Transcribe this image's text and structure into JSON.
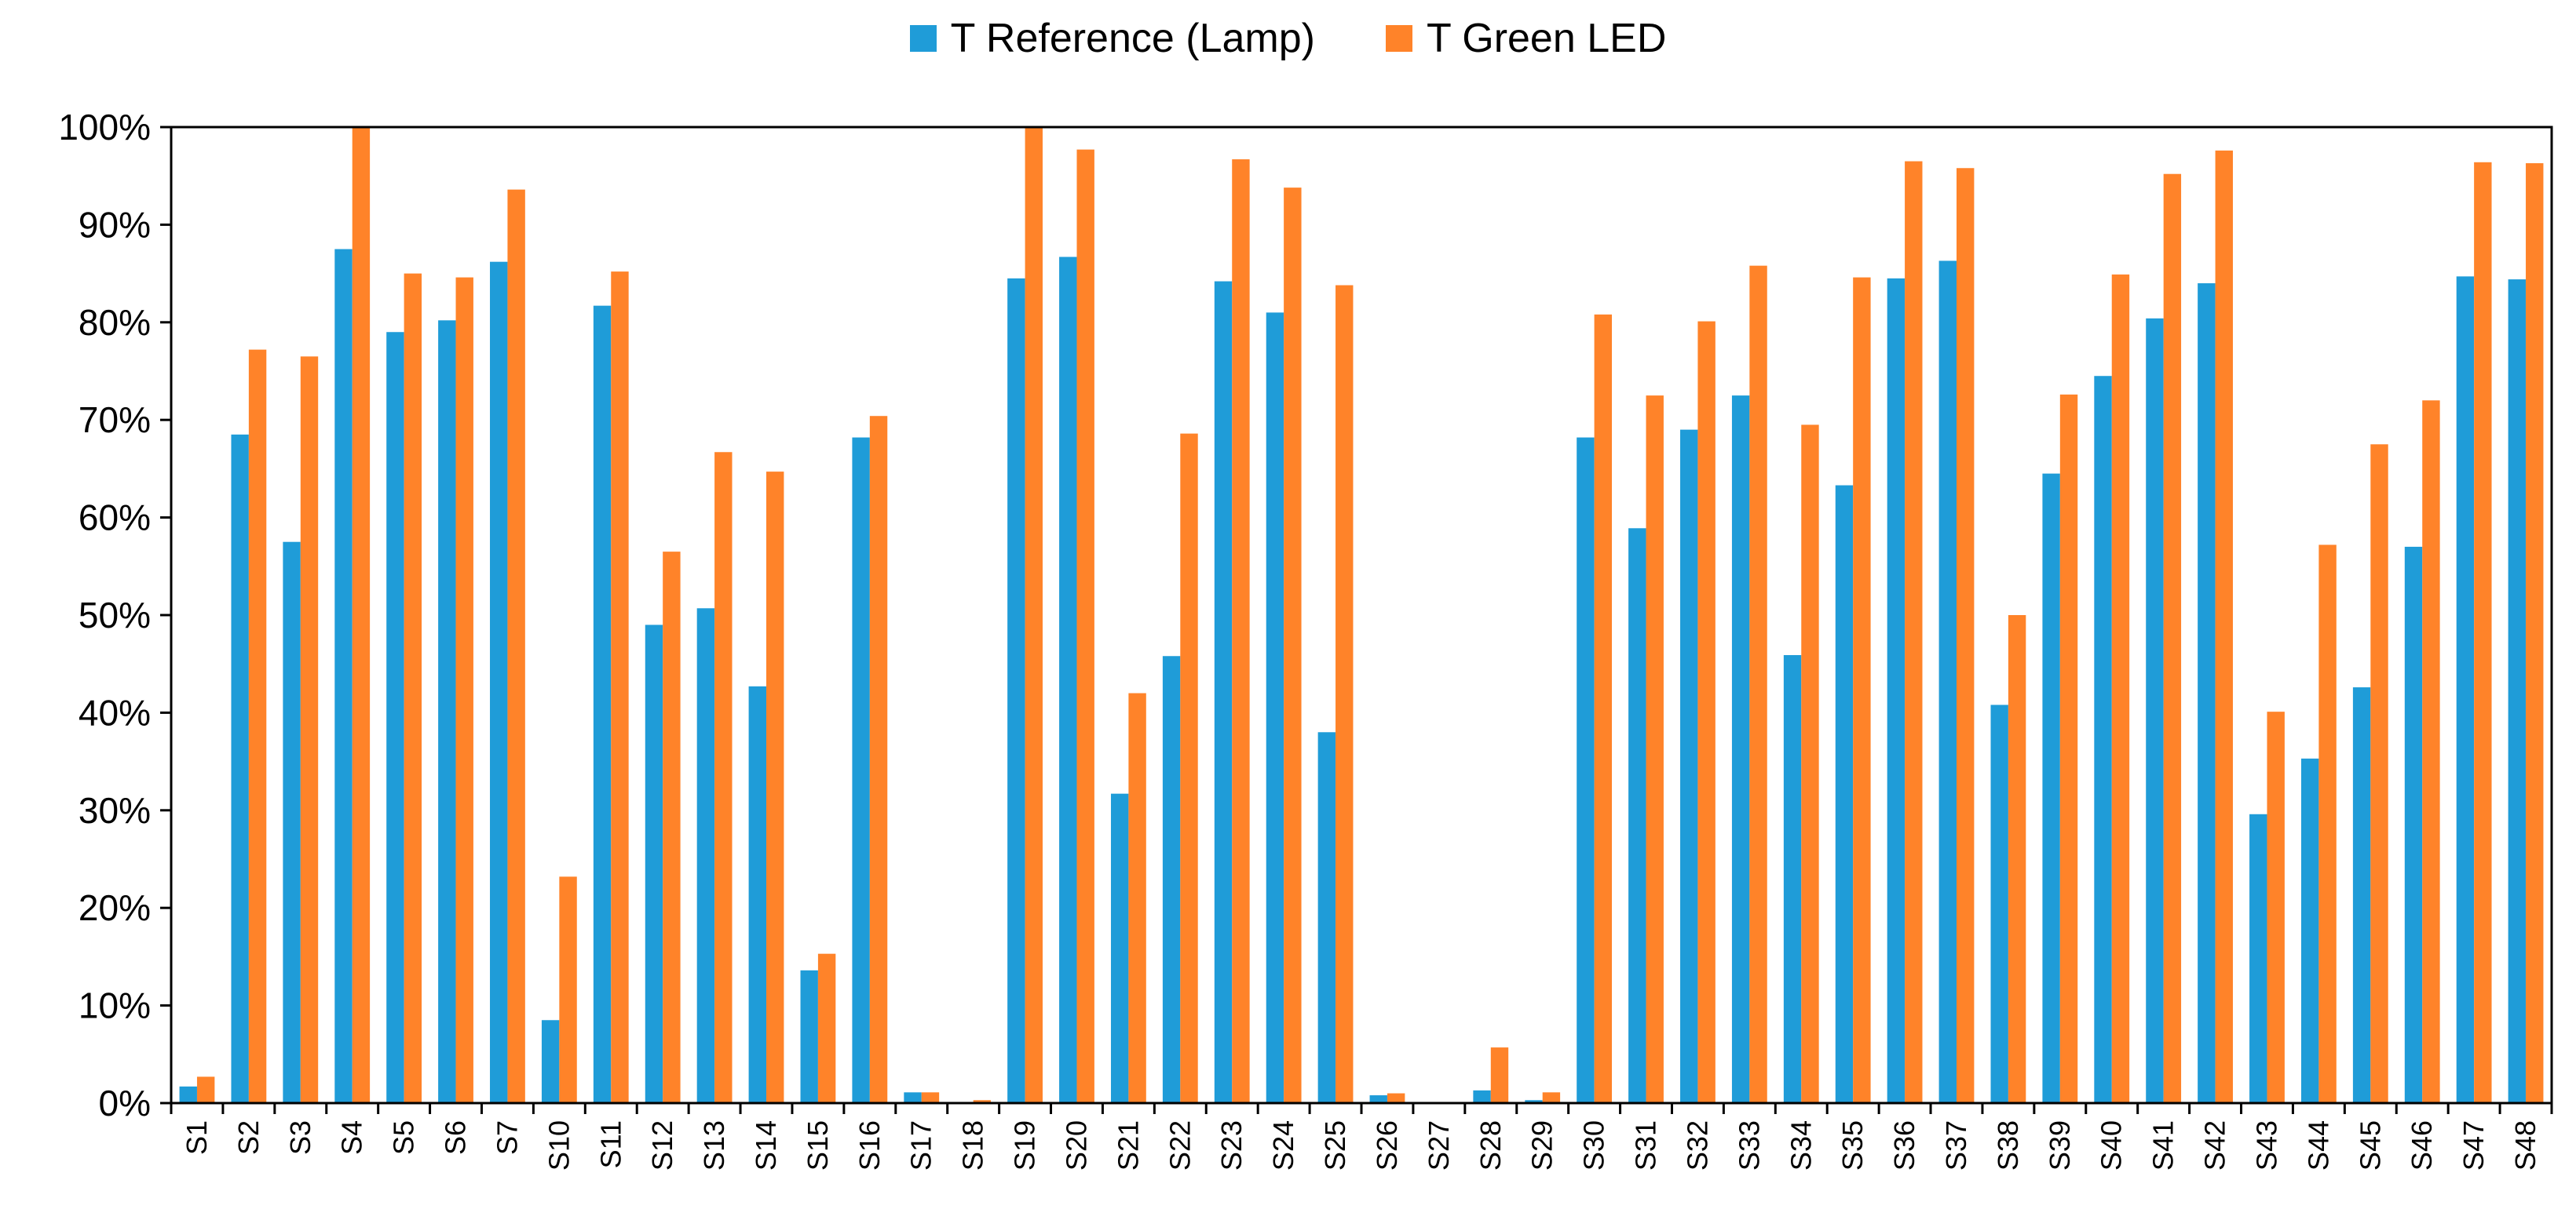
{
  "chart_data": {
    "type": "bar",
    "categories": [
      "S1",
      "S2",
      "S3",
      "S4",
      "S5",
      "S6",
      "S7",
      "S10",
      "S11",
      "S12",
      "S13",
      "S14",
      "S15",
      "S16",
      "S17",
      "S18",
      "S19",
      "S20",
      "S21",
      "S22",
      "S23",
      "S24",
      "S25",
      "S26",
      "S27",
      "S28",
      "S29",
      "S30",
      "S31",
      "S32",
      "S33",
      "S34",
      "S35",
      "S36",
      "S37",
      "S38",
      "S39",
      "S40",
      "S41",
      "S42",
      "S43",
      "S44",
      "S45",
      "S46",
      "S47",
      "S48"
    ],
    "series": [
      {
        "name": "T Reference (Lamp)",
        "color": "#1F9CD8",
        "values": [
          1.7,
          68.5,
          57.5,
          87.5,
          79,
          80.2,
          86.2,
          8.5,
          81.7,
          49,
          50.7,
          42.7,
          13.6,
          68.2,
          1.1,
          0,
          84.5,
          86.7,
          31.7,
          45.8,
          84.2,
          81,
          38,
          0.8,
          0,
          1.3,
          0.3,
          68.2,
          58.9,
          69,
          72.5,
          45.9,
          63.3,
          84.5,
          86.3,
          40.8,
          64.5,
          74.5,
          80.4,
          84,
          29.6,
          35.3,
          42.6,
          57,
          84.7,
          84.4
        ]
      },
      {
        "name": "T Green LED",
        "color": "#FF8329",
        "values": [
          2.7,
          77.2,
          76.5,
          100,
          85,
          84.6,
          93.6,
          23.2,
          85.2,
          56.5,
          66.7,
          64.7,
          15.3,
          70.4,
          1.1,
          0.3,
          100,
          97.7,
          42,
          68.6,
          96.7,
          93.8,
          83.8,
          1,
          0,
          5.7,
          1.1,
          80.8,
          72.5,
          80.1,
          85.8,
          69.5,
          84.6,
          96.5,
          95.8,
          50,
          72.6,
          84.9,
          95.2,
          97.6,
          40.1,
          57.2,
          67.5,
          72,
          96.4,
          96.3
        ]
      }
    ],
    "y_tick_labels": [
      "0%",
      "10%",
      "20%",
      "30%",
      "40%",
      "50%",
      "60%",
      "70%",
      "80%",
      "90%",
      "100%"
    ],
    "ylim": [
      0,
      100
    ],
    "title": "",
    "xlabel": "",
    "ylabel": "",
    "grid": false,
    "legend_position": "top-center"
  }
}
